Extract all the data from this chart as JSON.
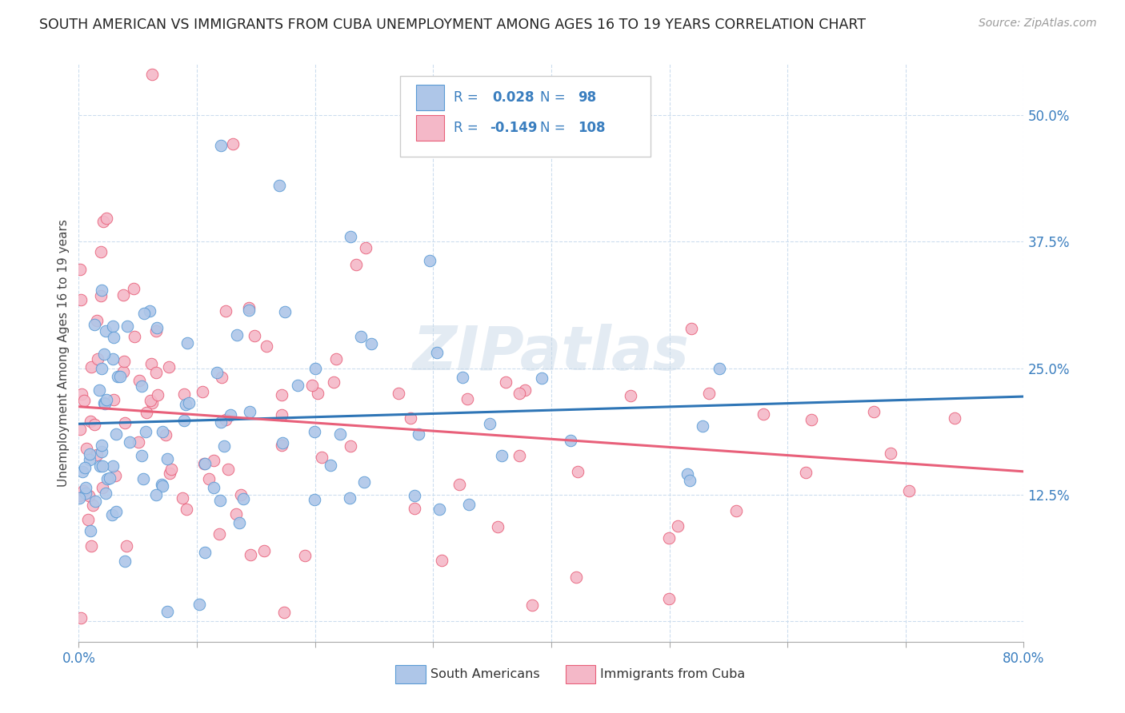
{
  "title": "SOUTH AMERICAN VS IMMIGRANTS FROM CUBA UNEMPLOYMENT AMONG AGES 16 TO 19 YEARS CORRELATION CHART",
  "source": "Source: ZipAtlas.com",
  "ylabel": "Unemployment Among Ages 16 to 19 years",
  "xlim": [
    0.0,
    0.8
  ],
  "ylim": [
    -0.02,
    0.55
  ],
  "yticks": [
    0.0,
    0.125,
    0.25,
    0.375,
    0.5
  ],
  "ytick_labels": [
    "",
    "12.5%",
    "25.0%",
    "37.5%",
    "50.0%"
  ],
  "xticks": [
    0.0,
    0.1,
    0.2,
    0.3,
    0.4,
    0.5,
    0.6,
    0.7,
    0.8
  ],
  "xtick_labels": [
    "0.0%",
    "",
    "",
    "",
    "",
    "",
    "",
    "",
    "80.0%"
  ],
  "sa_R": 0.028,
  "sa_N": 98,
  "cu_R": -0.149,
  "cu_N": 108,
  "sa_color": "#aec6e8",
  "sa_edge_color": "#5b9bd5",
  "sa_line_color": "#2e75b6",
  "cu_color": "#f4b8c8",
  "cu_edge_color": "#e8607a",
  "cu_line_color": "#e8607a",
  "legend_label_sa": "South Americans",
  "legend_label_cu": "Immigrants from Cuba",
  "watermark": "ZIPatlas",
  "title_fontsize": 12.5,
  "label_fontsize": 11,
  "tick_fontsize": 12,
  "source_fontsize": 10,
  "sa_trend_y0": 0.195,
  "sa_trend_y1": 0.222,
  "cu_trend_y0": 0.212,
  "cu_trend_y1": 0.148
}
